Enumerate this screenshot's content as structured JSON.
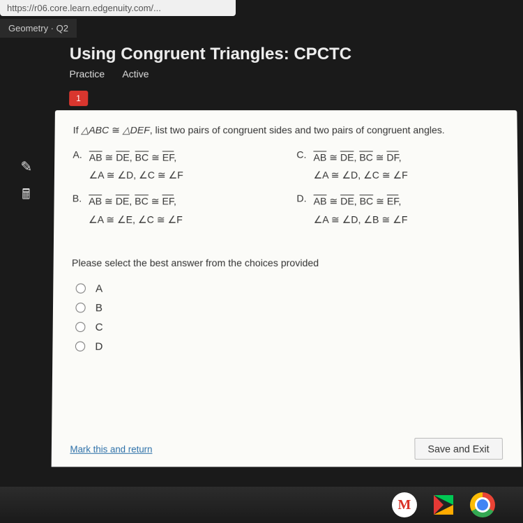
{
  "url": "https://r06.core.learn.edgenuity.com/...",
  "tab": "Geometry · Q2",
  "lesson": {
    "title": "Using Congruent Triangles: CPCTC",
    "mode": "Practice",
    "state": "Active"
  },
  "badge": "1",
  "question": {
    "prefix": "If ",
    "tri1": "△ABC",
    "cong": " ≅ ",
    "tri2": "△DEF",
    "suffix": ", list two pairs of congruent sides and two pairs of congruent angles."
  },
  "answers": {
    "A": {
      "letter": "A.",
      "seg1a": "AB",
      "seg1b": "DE",
      "seg2a": "BC",
      "seg2b": "EF",
      "ang": "∠A ≅ ∠D, ∠C ≅ ∠F"
    },
    "C": {
      "letter": "C.",
      "seg1a": "AB",
      "seg1b": "DE",
      "seg2a": "BC",
      "seg2b": "DF",
      "ang": "∠A ≅ ∠D, ∠C ≅ ∠F"
    },
    "B": {
      "letter": "B.",
      "seg1a": "AB",
      "seg1b": "DE",
      "seg2a": "BC",
      "seg2b": "EF",
      "ang": "∠A ≅ ∠E, ∠C ≅ ∠F"
    },
    "D": {
      "letter": "D.",
      "seg1a": "AB",
      "seg1b": "DE",
      "seg2a": "BC",
      "seg2b": "EF",
      "ang": "∠A ≅ ∠D, ∠B ≅ ∠F"
    }
  },
  "instruction": "Please select the best answer from the choices provided",
  "choices": [
    "A",
    "B",
    "C",
    "D"
  ],
  "footer": {
    "mark": "Mark this and return",
    "save": "Save and Exit"
  }
}
